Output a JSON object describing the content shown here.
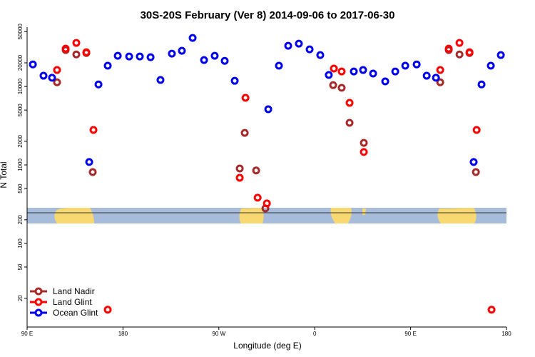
{
  "chart_data": {
    "type": "scatter",
    "title": "30S-20S February (Ver 8)   2014-09-06 to 2017-06-30",
    "x_label": "Longitude (deg E)",
    "y_label": "N Total",
    "xlim": [
      90,
      540
    ],
    "xticks": [
      {
        "value": 90,
        "label": "90 E"
      },
      {
        "value": 180,
        "label": "180"
      },
      {
        "value": 270,
        "label": "90 W"
      },
      {
        "value": 360,
        "label": "0"
      },
      {
        "value": 450,
        "label": "90 E"
      },
      {
        "value": 540,
        "label": "180"
      }
    ],
    "ylim": [
      8.6,
      57000
    ],
    "y_log": true,
    "yticks": [
      20,
      50,
      100,
      200,
      500,
      1000,
      2000,
      5000,
      10000,
      20000,
      50000
    ],
    "legend_position": "bottom-left",
    "series": [
      {
        "name": "Land Nadir",
        "color": "#a52a2a",
        "x": [
          118.1,
          126.2,
          136.2,
          145.6,
          151.6,
          289.6,
          294.3,
          305,
          313.7,
          377.3,
          385.3,
          392.7,
          406.1,
          477.8,
          485.8,
          495.9,
          505.3,
          511.3
        ],
        "values": [
          11300,
          29100,
          25600,
          26700,
          810,
          900,
          2560,
          850,
          279,
          10400,
          9600,
          3440,
          1910,
          11300,
          29100,
          25600,
          26700,
          810
        ]
      },
      {
        "name": "Land Glint",
        "color": "#ff0000",
        "x": [
          118.1,
          126.2,
          136.2,
          145.6,
          152.3,
          165.7,
          289.6,
          295,
          306.4,
          315.1,
          378,
          385.3,
          392.7,
          406.1,
          477.8,
          485.8,
          495.9,
          505.3,
          512,
          526
        ],
        "values": [
          16200,
          30300,
          35900,
          27300,
          2790,
          14.3,
          686,
          7160,
          382,
          323,
          16900,
          15500,
          6180,
          1460,
          16200,
          30300,
          35900,
          27300,
          2790,
          14.3
        ]
      },
      {
        "name": "Ocean Glint",
        "color": "#0000ee",
        "x": [
          95.4,
          105.4,
          113.4,
          148.3,
          157,
          165.7,
          175.1,
          185.8,
          195.8,
          205.9,
          215.2,
          225.9,
          235.3,
          245.4,
          256.1,
          266.1,
          275.5,
          284.9,
          316.4,
          326.4,
          335.1,
          345.1,
          355.2,
          365.2,
          373.2,
          396.7,
          405.4,
          414.8,
          426.2,
          435.6,
          445,
          455.7,
          465.1,
          473.8,
          509.2,
          516.6,
          525.3,
          534.7
        ],
        "values": [
          19100,
          13700,
          12900,
          1090,
          10600,
          18400,
          24600,
          24100,
          24100,
          23600,
          12100,
          26200,
          28500,
          41500,
          21700,
          24600,
          21200,
          11800,
          5120,
          18400,
          33000,
          35100,
          29700,
          25100,
          14000,
          15500,
          16200,
          14600,
          11600,
          15500,
          18400,
          19100,
          13700,
          12900,
          1090,
          10600,
          18400,
          25100
        ]
      }
    ]
  }
}
